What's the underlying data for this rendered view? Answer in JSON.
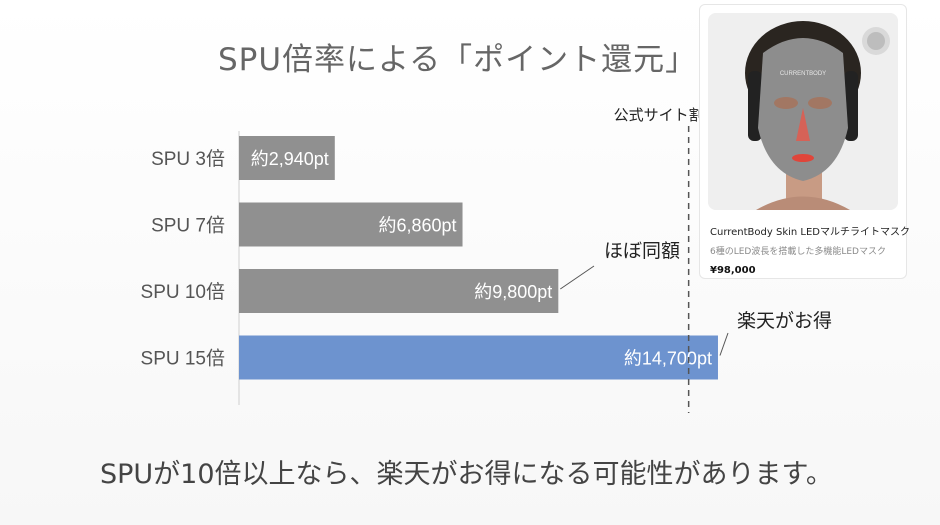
{
  "title": "SPU倍率による「ポイント還元」",
  "footer": "SPUが10倍以上なら、楽天がお得になる可能性があります。",
  "product": {
    "name": "CurrentBody Skin LEDマルチライトマスク",
    "description": "6種のLED波長を搭載した多機能LEDマスク",
    "price_prefix": "¥",
    "price": "98,000",
    "mask_brand": "CURRENTBODY",
    "icons": [
      "led-mask-photo",
      "face-icon"
    ]
  },
  "chart_data": {
    "type": "bar",
    "orientation": "horizontal",
    "categories": [
      "SPU 3倍",
      "SPU 7倍",
      "SPU 10倍",
      "SPU 15倍"
    ],
    "values": [
      2940,
      6860,
      9800,
      14700
    ],
    "labels": [
      "約2,940pt",
      "約6,860pt",
      "約9,800pt",
      "約14,700pt"
    ],
    "xlim": [
      0,
      20900
    ],
    "colors": [
      "#909090",
      "#909090",
      "#909090",
      "#6d93cf"
    ],
    "reference_line": {
      "value": 13800,
      "label": "公式サイト割引ライン"
    },
    "annotations": [
      {
        "text": "ほぼ同額",
        "target_category": "SPU 10倍"
      },
      {
        "text": "楽天がお得",
        "target_category": "SPU 15倍"
      }
    ],
    "grid": false,
    "legend": "none"
  }
}
